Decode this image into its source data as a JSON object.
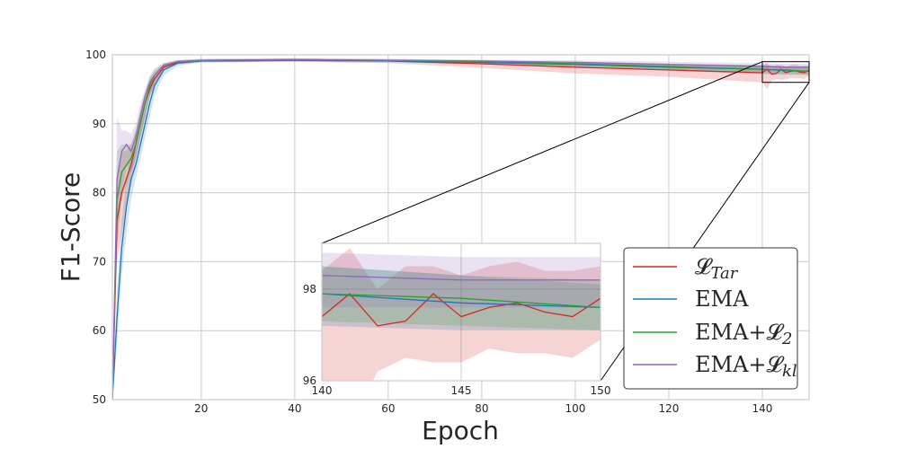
{
  "chart_data": {
    "type": "line",
    "xlabel": "Epoch",
    "ylabel": "F1-Score",
    "xlim": [
      1,
      150
    ],
    "ylim": [
      50,
      100
    ],
    "xticks": [
      20,
      40,
      60,
      80,
      100,
      120,
      140
    ],
    "yticks": [
      50,
      60,
      70,
      80,
      90,
      100
    ],
    "grid": true,
    "legend_position": "lower-right",
    "series": [
      {
        "name": "𝓛Tar",
        "legend": {
          "base": "𝓛",
          "sub": "Tar"
        },
        "color": "#d62728",
        "points": [
          [
            1,
            50
          ],
          [
            2,
            76
          ],
          [
            3,
            80
          ],
          [
            4,
            82
          ],
          [
            5,
            84
          ],
          [
            6,
            87
          ],
          [
            7,
            90
          ],
          [
            8,
            93
          ],
          [
            9,
            95
          ],
          [
            10,
            96.5
          ],
          [
            12,
            98.2
          ],
          [
            15,
            98.9
          ],
          [
            20,
            99.1
          ],
          [
            40,
            99.2
          ],
          [
            60,
            99.1
          ],
          [
            80,
            98.7
          ],
          [
            100,
            98.2
          ],
          [
            120,
            97.8
          ],
          [
            140,
            97.4
          ],
          [
            141,
            97.9
          ],
          [
            142,
            97.2
          ],
          [
            143,
            97.3
          ],
          [
            144,
            97.9
          ],
          [
            145,
            97.4
          ],
          [
            146,
            97.6
          ],
          [
            147,
            97.7
          ],
          [
            148,
            97.5
          ],
          [
            149,
            97.4
          ],
          [
            150,
            97.8
          ]
        ],
        "band": [
          [
            1,
            50,
            50
          ],
          [
            2,
            70,
            82
          ],
          [
            3,
            74,
            86
          ],
          [
            4,
            78,
            86
          ],
          [
            5,
            81,
            87
          ],
          [
            6,
            85,
            89
          ],
          [
            7,
            88,
            92
          ],
          [
            8,
            91,
            94.5
          ],
          [
            9,
            94,
            96.5
          ],
          [
            10,
            95.8,
            97.5
          ],
          [
            12,
            97.8,
            98.6
          ],
          [
            15,
            98.6,
            99.2
          ],
          [
            20,
            98.9,
            99.3
          ],
          [
            40,
            99.0,
            99.4
          ],
          [
            60,
            98.8,
            99.3
          ],
          [
            80,
            98.1,
            99.1
          ],
          [
            100,
            97.3,
            98.9
          ],
          [
            120,
            96.8,
            98.6
          ],
          [
            140,
            96.0,
            98.4
          ],
          [
            141,
            95.0,
            98.9
          ],
          [
            142,
            96.2,
            98.0
          ],
          [
            143,
            96.5,
            98.5
          ],
          [
            144,
            96.4,
            98.5
          ],
          [
            145,
            96.4,
            98.3
          ],
          [
            146,
            96.7,
            98.5
          ],
          [
            147,
            96.6,
            98.6
          ],
          [
            148,
            96.6,
            98.4
          ],
          [
            149,
            96.5,
            98.4
          ],
          [
            150,
            96.9,
            98.5
          ]
        ]
      },
      {
        "name": "EMA",
        "color": "#1f77b4",
        "points": [
          [
            1,
            50
          ],
          [
            2,
            62
          ],
          [
            3,
            72
          ],
          [
            4,
            78
          ],
          [
            5,
            82
          ],
          [
            6,
            84
          ],
          [
            7,
            87
          ],
          [
            8,
            90
          ],
          [
            9,
            93
          ],
          [
            10,
            95.5
          ],
          [
            12,
            97.8
          ],
          [
            15,
            98.8
          ],
          [
            20,
            99.1
          ],
          [
            40,
            99.2
          ],
          [
            60,
            99.1
          ],
          [
            80,
            98.9
          ],
          [
            100,
            98.6
          ],
          [
            120,
            98.2
          ],
          [
            140,
            97.9
          ],
          [
            145,
            97.7
          ],
          [
            150,
            97.6
          ]
        ],
        "band": [
          [
            1,
            50,
            50
          ],
          [
            2,
            58,
            66
          ],
          [
            3,
            68,
            76
          ],
          [
            4,
            74,
            82
          ],
          [
            5,
            79,
            85
          ],
          [
            6,
            82,
            86
          ],
          [
            7,
            85,
            89
          ],
          [
            8,
            88,
            92
          ],
          [
            9,
            91,
            94.5
          ],
          [
            10,
            94,
            96.5
          ],
          [
            12,
            97,
            98.4
          ],
          [
            15,
            98.4,
            99.1
          ],
          [
            20,
            98.9,
            99.3
          ],
          [
            40,
            99.0,
            99.4
          ],
          [
            60,
            98.9,
            99.3
          ],
          [
            80,
            98.6,
            99.2
          ],
          [
            100,
            98.2,
            99.0
          ],
          [
            120,
            97.7,
            98.7
          ],
          [
            140,
            97.2,
            98.5
          ],
          [
            145,
            97.1,
            98.3
          ],
          [
            150,
            97.1,
            98.1
          ]
        ]
      },
      {
        "name": "EMA+𝓛2",
        "legend": {
          "base": "EMA+𝓛",
          "sub": "2"
        },
        "color": "#2ca02c",
        "points": [
          [
            1,
            50
          ],
          [
            2,
            79
          ],
          [
            3,
            83
          ],
          [
            4,
            84
          ],
          [
            5,
            85
          ],
          [
            6,
            87
          ],
          [
            7,
            90
          ],
          [
            8,
            93
          ],
          [
            9,
            95.5
          ],
          [
            10,
            97
          ],
          [
            12,
            98.5
          ],
          [
            15,
            99
          ],
          [
            20,
            99.2
          ],
          [
            40,
            99.3
          ],
          [
            60,
            99.2
          ],
          [
            80,
            99.0
          ],
          [
            100,
            98.7
          ],
          [
            120,
            98.3
          ],
          [
            140,
            97.9
          ],
          [
            145,
            97.8
          ],
          [
            150,
            97.6
          ]
        ],
        "band": [
          [
            1,
            50,
            50
          ],
          [
            2,
            73,
            86
          ],
          [
            3,
            79,
            87
          ],
          [
            4,
            81,
            87
          ],
          [
            5,
            83,
            87
          ],
          [
            6,
            85,
            89
          ],
          [
            7,
            88,
            92
          ],
          [
            8,
            91,
            94.5
          ],
          [
            9,
            94,
            96.8
          ],
          [
            10,
            96,
            97.8
          ],
          [
            12,
            98,
            98.8
          ],
          [
            15,
            98.7,
            99.2
          ],
          [
            20,
            99.0,
            99.4
          ],
          [
            40,
            99.1,
            99.5
          ],
          [
            60,
            99.0,
            99.4
          ],
          [
            80,
            98.7,
            99.2
          ],
          [
            100,
            98.3,
            99.0
          ],
          [
            120,
            97.8,
            98.7
          ],
          [
            140,
            97.3,
            98.5
          ],
          [
            145,
            97.2,
            98.3
          ],
          [
            150,
            97.1,
            98.2
          ]
        ]
      },
      {
        "name": "EMA+𝓛kl",
        "legend": {
          "base": "EMA+𝓛",
          "sub": "kl"
        },
        "color": "#9467bd",
        "points": [
          [
            1,
            50
          ],
          [
            2,
            82
          ],
          [
            3,
            86
          ],
          [
            4,
            87
          ],
          [
            5,
            86
          ],
          [
            6,
            88
          ],
          [
            7,
            91
          ],
          [
            8,
            94
          ],
          [
            9,
            96
          ],
          [
            10,
            97
          ],
          [
            12,
            98.5
          ],
          [
            15,
            99
          ],
          [
            20,
            99.2
          ],
          [
            40,
            99.3
          ],
          [
            60,
            99.2
          ],
          [
            80,
            99.1
          ],
          [
            100,
            98.9
          ],
          [
            120,
            98.6
          ],
          [
            140,
            98.3
          ],
          [
            145,
            98.2
          ],
          [
            150,
            98.2
          ]
        ],
        "band": [
          [
            1,
            50,
            50
          ],
          [
            2,
            72,
            91
          ],
          [
            3,
            80,
            89
          ],
          [
            4,
            84,
            89
          ],
          [
            5,
            83,
            88.5
          ],
          [
            6,
            85,
            90
          ],
          [
            7,
            88,
            93
          ],
          [
            8,
            91,
            95
          ],
          [
            9,
            94,
            97
          ],
          [
            10,
            95.5,
            98
          ],
          [
            12,
            98,
            98.9
          ],
          [
            15,
            98.7,
            99.3
          ],
          [
            20,
            99.0,
            99.4
          ],
          [
            40,
            99.1,
            99.5
          ],
          [
            60,
            99.0,
            99.4
          ],
          [
            80,
            98.8,
            99.3
          ],
          [
            100,
            98.5,
            99.2
          ],
          [
            120,
            98.0,
            99.0
          ],
          [
            140,
            97.6,
            98.8
          ],
          [
            145,
            97.6,
            98.7
          ],
          [
            150,
            97.6,
            98.7
          ]
        ]
      }
    ],
    "inset": {
      "xlim": [
        140,
        150
      ],
      "ylim": [
        96,
        99
      ],
      "xticks": [
        140,
        145,
        150
      ],
      "yticks": [
        96,
        98
      ],
      "zoom_box": {
        "xlim": [
          140,
          150
        ],
        "ylim": [
          96,
          99
        ]
      }
    }
  }
}
